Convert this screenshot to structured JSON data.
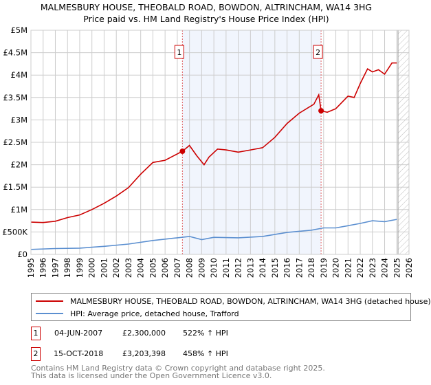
{
  "title": "MALMESBURY HOUSE, THEOBALD ROAD, BOWDON, ALTRINCHAM, WA14 3HG",
  "subtitle": "Price paid vs. HM Land Registry's House Price Index (HPI)",
  "chart_data": {
    "type": "line",
    "title": "MALMESBURY HOUSE, THEOBALD ROAD, BOWDON, ALTRINCHAM, WA14 3HG",
    "subtitle": "Price paid vs. HM Land Registry's House Price Index (HPI)",
    "xlim": [
      1995,
      2026
    ],
    "ylim": [
      0,
      5000000
    ],
    "grid": true,
    "x_ticks": [
      "1995",
      "1996",
      "1997",
      "1998",
      "1999",
      "2000",
      "2001",
      "2002",
      "2003",
      "2004",
      "2005",
      "2006",
      "2007",
      "2008",
      "2009",
      "2010",
      "2011",
      "2012",
      "2013",
      "2014",
      "2015",
      "2016",
      "2017",
      "2018",
      "2019",
      "2020",
      "2021",
      "2022",
      "2023",
      "2024",
      "2025",
      "2026"
    ],
    "y_ticks": [
      {
        "v": 0,
        "label": "£0"
      },
      {
        "v": 500000,
        "label": "£500K"
      },
      {
        "v": 1000000,
        "label": "£1M"
      },
      {
        "v": 1500000,
        "label": "£1.5M"
      },
      {
        "v": 2000000,
        "label": "£2M"
      },
      {
        "v": 2500000,
        "label": "£2.5M"
      },
      {
        "v": 3000000,
        "label": "£3M"
      },
      {
        "v": 3500000,
        "label": "£3.5M"
      },
      {
        "v": 4000000,
        "label": "£4M"
      },
      {
        "v": 4500000,
        "label": "£4.5M"
      },
      {
        "v": 5000000,
        "label": "£5M"
      }
    ],
    "series": [
      {
        "name": "MALMESBURY HOUSE, THEOBALD ROAD, BOWDON, ALTRINCHAM, WA14 3HG (detached house)",
        "color": "#cc0000",
        "x": [
          1995,
          1996,
          1997,
          1998,
          1999,
          2000,
          2001,
          2002,
          2003,
          2004,
          2005,
          2006,
          2007.42,
          2008,
          2008.6,
          2009.2,
          2009.6,
          2010.3,
          2011,
          2012,
          2013,
          2014,
          2015,
          2016,
          2017,
          2018.2,
          2018.6,
          2018.79,
          2019.3,
          2020,
          2021,
          2021.5,
          2022,
          2022.6,
          2023,
          2023.5,
          2024,
          2024.6,
          2025
        ],
        "y": [
          720000,
          710000,
          740000,
          820000,
          880000,
          1000000,
          1140000,
          1300000,
          1490000,
          1790000,
          2050000,
          2100000,
          2300000,
          2430000,
          2200000,
          2000000,
          2170000,
          2350000,
          2330000,
          2280000,
          2330000,
          2380000,
          2610000,
          2920000,
          3150000,
          3350000,
          3560000,
          3203398,
          3170000,
          3250000,
          3530000,
          3500000,
          3810000,
          4140000,
          4070000,
          4120000,
          4020000,
          4270000,
          4270000
        ]
      },
      {
        "name": "HPI: Average price, detached house, Trafford",
        "color": "#5b8fd0",
        "x": [
          1995,
          1997,
          1999,
          2001,
          2003,
          2005,
          2007,
          2008,
          2009,
          2010,
          2012,
          2014,
          2016,
          2018,
          2019,
          2020,
          2021,
          2022,
          2023,
          2024,
          2025
        ],
        "y": [
          110000,
          130000,
          140000,
          180000,
          230000,
          310000,
          370000,
          400000,
          330000,
          380000,
          370000,
          400000,
          490000,
          540000,
          590000,
          590000,
          640000,
          690000,
          750000,
          730000,
          780000
        ]
      }
    ],
    "sales": [
      {
        "label": "1",
        "x": 2007.42,
        "y": 2300000
      },
      {
        "label": "2",
        "x": 2018.79,
        "y": 3203398
      }
    ],
    "shaded_range": [
      2007.42,
      2018.79
    ],
    "forecast_hatch_from": 2025.1,
    "legend_placement": "below"
  },
  "legend": [
    {
      "label": "MALMESBURY HOUSE, THEOBALD ROAD, BOWDON, ALTRINCHAM, WA14 3HG (detached house)",
      "color": "#cc0000"
    },
    {
      "label": "HPI: Average price, detached house, Trafford",
      "color": "#5b8fd0"
    }
  ],
  "transactions": [
    {
      "num": "1",
      "date": "04-JUN-2007",
      "price": "£2,300,000",
      "hpi": "522% ↑ HPI"
    },
    {
      "num": "2",
      "date": "15-OCT-2018",
      "price": "£3,203,398",
      "hpi": "458% ↑ HPI"
    }
  ],
  "footer": [
    "Contains HM Land Registry data © Crown copyright and database right 2025.",
    "This data is licensed under the Open Government Licence v3.0."
  ]
}
